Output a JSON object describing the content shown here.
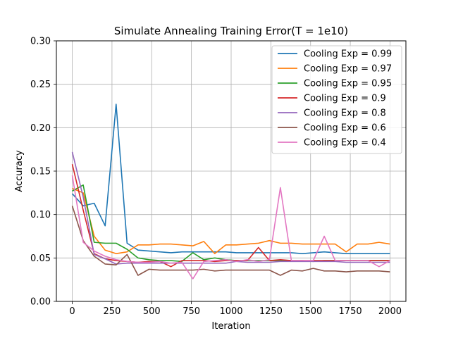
{
  "chart_data": {
    "type": "line",
    "title": "Simulate Annealing Training Error(T = 1e10)",
    "xlabel": "Iteration",
    "ylabel": "Accuracy",
    "xlim": [
      -100,
      2100
    ],
    "ylim": [
      0.0,
      0.3
    ],
    "xticks": [
      0,
      250,
      500,
      750,
      1000,
      1250,
      1500,
      1750,
      2000
    ],
    "xtick_labels": [
      "0",
      "250",
      "500",
      "750",
      "1000",
      "1250",
      "1500",
      "1750",
      "2000"
    ],
    "yticks": [
      0.0,
      0.05,
      0.1,
      0.15,
      0.2,
      0.25,
      0.3
    ],
    "ytick_labels": [
      "0.00",
      "0.05",
      "0.10",
      "0.15",
      "0.20",
      "0.25",
      "0.30"
    ],
    "grid": true,
    "legend_position": "top-right",
    "x": [
      0,
      69,
      138,
      207,
      276,
      345,
      414,
      483,
      552,
      621,
      690,
      759,
      828,
      897,
      966,
      1034,
      1103,
      1172,
      1241,
      1310,
      1379,
      1448,
      1517,
      1586,
      1655,
      1724,
      1793,
      1862,
      1931,
      2000
    ],
    "series": [
      {
        "name": "Cooling Exp = 0.99",
        "color": "#1f77b4",
        "values": [
          0.124,
          0.11,
          0.113,
          0.087,
          0.227,
          0.067,
          0.059,
          0.058,
          0.057,
          0.056,
          0.057,
          0.057,
          0.057,
          0.057,
          0.057,
          0.056,
          0.056,
          0.056,
          0.056,
          0.056,
          0.056,
          0.055,
          0.056,
          0.057,
          0.056,
          0.055,
          0.055,
          0.055,
          0.055,
          0.055
        ]
      },
      {
        "name": "Cooling Exp = 0.97",
        "color": "#ff7f0e",
        "values": [
          0.13,
          0.125,
          0.075,
          0.059,
          0.055,
          0.057,
          0.065,
          0.065,
          0.066,
          0.066,
          0.065,
          0.064,
          0.069,
          0.055,
          0.065,
          0.065,
          0.066,
          0.067,
          0.07,
          0.067,
          0.067,
          0.066,
          0.066,
          0.066,
          0.066,
          0.057,
          0.066,
          0.066,
          0.068,
          0.066
        ]
      },
      {
        "name": "Cooling Exp = 0.95",
        "color": "#2ca02c",
        "values": [
          0.127,
          0.134,
          0.068,
          0.067,
          0.067,
          0.06,
          0.05,
          0.048,
          0.047,
          0.047,
          0.046,
          0.056,
          0.048,
          0.05,
          0.048,
          0.047,
          0.047,
          0.047,
          0.047,
          0.047,
          0.047,
          0.047,
          0.046,
          0.047,
          0.047,
          0.047,
          0.047,
          0.047,
          0.047,
          0.047
        ]
      },
      {
        "name": "Cooling Exp = 0.9",
        "color": "#d62728",
        "values": [
          0.158,
          0.105,
          0.055,
          0.049,
          0.047,
          0.046,
          0.045,
          0.046,
          0.046,
          0.04,
          0.047,
          0.047,
          0.047,
          0.046,
          0.047,
          0.047,
          0.047,
          0.062,
          0.047,
          0.048,
          0.047,
          0.047,
          0.047,
          0.047,
          0.047,
          0.047,
          0.047,
          0.047,
          0.047,
          0.047
        ]
      },
      {
        "name": "Cooling Exp = 0.8",
        "color": "#9467bd",
        "values": [
          0.172,
          0.12,
          0.054,
          0.049,
          0.043,
          0.044,
          0.044,
          0.044,
          0.044,
          0.044,
          0.044,
          0.044,
          0.044,
          0.044,
          0.044,
          0.046,
          0.045,
          0.045,
          0.045,
          0.046,
          0.046,
          0.046,
          0.046,
          0.046,
          0.046,
          0.045,
          0.045,
          0.045,
          0.045,
          0.045
        ]
      },
      {
        "name": "Cooling Exp = 0.6",
        "color": "#8c564b",
        "values": [
          0.11,
          0.07,
          0.052,
          0.043,
          0.042,
          0.054,
          0.03,
          0.037,
          0.036,
          0.036,
          0.036,
          0.036,
          0.037,
          0.035,
          0.036,
          0.036,
          0.036,
          0.036,
          0.036,
          0.03,
          0.036,
          0.035,
          0.038,
          0.035,
          0.035,
          0.034,
          0.035,
          0.035,
          0.035,
          0.034
        ]
      },
      {
        "name": "Cooling Exp = 0.4",
        "color": "#e377c2",
        "values": [
          0.145,
          0.068,
          0.058,
          0.052,
          0.048,
          0.046,
          0.045,
          0.045,
          0.046,
          0.044,
          0.045,
          0.026,
          0.046,
          0.047,
          0.048,
          0.046,
          0.048,
          0.046,
          0.048,
          0.131,
          0.047,
          0.047,
          0.047,
          0.075,
          0.047,
          0.047,
          0.047,
          0.047,
          0.04,
          0.047
        ]
      }
    ]
  }
}
